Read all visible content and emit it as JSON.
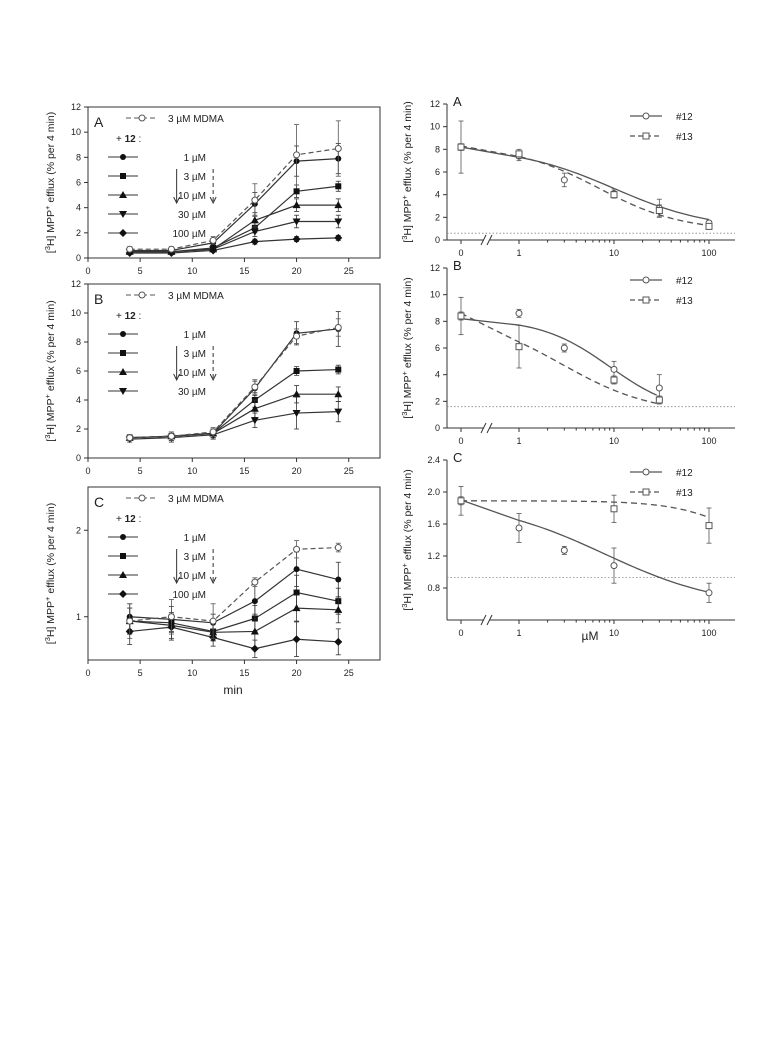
{
  "figure": {
    "shared_ylabel_left": "[3H] MPP+ efflux (% per 4 min)",
    "left_xlabel": "min",
    "right_xlabel": "µM",
    "ylabel_base": "H] MPP",
    "ylabel_tail": " efflux (% per 4 min)",
    "ylabel_sup1": "3",
    "ylabel_sup2": "+",
    "ylabel_open": "["
  },
  "chart_data": [
    {
      "id": "left-A",
      "type": "line",
      "panel_label": "A",
      "xlim": [
        0,
        28
      ],
      "ylim": [
        0,
        12
      ],
      "xticks": [
        0,
        5,
        10,
        15,
        20,
        25
      ],
      "yticks": [
        0,
        2,
        4,
        6,
        8,
        10,
        12
      ],
      "xlabel": "",
      "ylabel": "[3H] MPP+ efflux (% per 4 min)",
      "x": [
        4,
        8,
        12,
        16,
        20,
        24
      ],
      "arrows": [
        {
          "x": 8.5,
          "style": "solid"
        },
        {
          "x": 12,
          "style": "dashed"
        }
      ],
      "legend_header": "+ 12 :",
      "series": [
        {
          "name": "3 µM MDMA",
          "marker": "open-circle",
          "dash": true,
          "values": [
            0.7,
            0.7,
            1.4,
            4.6,
            8.2,
            8.7
          ],
          "err": [
            0.2,
            0.2,
            0.3,
            1.3,
            2.4,
            2.2
          ]
        },
        {
          "name": "1 µM",
          "marker": "filled-circle",
          "dash": false,
          "values": [
            0.6,
            0.6,
            1.2,
            4.3,
            7.7,
            7.9
          ],
          "err": [
            0.2,
            0.2,
            0.3,
            0.9,
            1.2,
            1.2
          ]
        },
        {
          "name": "3 µM",
          "marker": "filled-square",
          "dash": false,
          "values": [
            0.5,
            0.5,
            0.8,
            2.4,
            5.3,
            5.7
          ],
          "err": [
            0.2,
            0.2,
            0.2,
            0.4,
            0.5,
            0.4
          ]
        },
        {
          "name": "10 µM",
          "marker": "filled-triangle-up",
          "dash": false,
          "values": [
            0.5,
            0.5,
            0.7,
            3.0,
            4.2,
            4.2
          ],
          "err": [
            0.1,
            0.1,
            0.2,
            0.6,
            0.5,
            0.5
          ]
        },
        {
          "name": "30 µM",
          "marker": "filled-triangle-down",
          "dash": false,
          "values": [
            0.5,
            0.5,
            0.7,
            2.1,
            2.9,
            2.9
          ],
          "err": [
            0.1,
            0.1,
            0.2,
            0.4,
            0.5,
            0.5
          ]
        },
        {
          "name": "100 µM",
          "marker": "filled-diamond",
          "dash": false,
          "values": [
            0.4,
            0.4,
            0.6,
            1.3,
            1.5,
            1.6
          ],
          "err": [
            0.1,
            0.1,
            0.1,
            0.2,
            0.2,
            0.2
          ]
        }
      ]
    },
    {
      "id": "left-B",
      "type": "line",
      "panel_label": "B",
      "xlim": [
        0,
        28
      ],
      "ylim": [
        0,
        12
      ],
      "xticks": [
        0,
        5,
        10,
        15,
        20,
        25
      ],
      "yticks": [
        0,
        2,
        4,
        6,
        8,
        10,
        12
      ],
      "xlabel": "",
      "ylabel": "[3H] MPP+ efflux (% per 4 min)",
      "x": [
        4,
        8,
        12,
        16,
        20,
        24
      ],
      "arrows": [
        {
          "x": 8.5,
          "style": "solid"
        },
        {
          "x": 12,
          "style": "dashed"
        }
      ],
      "legend_header": "+ 12 :",
      "series": [
        {
          "name": "3 µM MDMA",
          "marker": "open-circle",
          "dash": true,
          "values": [
            1.4,
            1.5,
            1.8,
            4.9,
            8.4,
            9.0
          ],
          "err": [
            0.2,
            0.3,
            0.3,
            0.5,
            0.5,
            0.6
          ]
        },
        {
          "name": "1 µM",
          "marker": "filled-circle",
          "dash": false,
          "values": [
            1.4,
            1.5,
            1.7,
            4.8,
            8.6,
            8.9
          ],
          "err": [
            0.2,
            0.3,
            0.3,
            0.5,
            0.8,
            1.2
          ]
        },
        {
          "name": "3 µM",
          "marker": "filled-square",
          "dash": false,
          "values": [
            1.4,
            1.5,
            1.7,
            4.0,
            6.0,
            6.1
          ],
          "err": [
            0.2,
            0.3,
            0.3,
            0.5,
            0.3,
            0.3
          ]
        },
        {
          "name": "10 µM",
          "marker": "filled-triangle-up",
          "dash": false,
          "values": [
            1.4,
            1.5,
            1.7,
            3.4,
            4.4,
            4.4
          ],
          "err": [
            0.2,
            0.3,
            0.3,
            0.6,
            0.6,
            0.5
          ]
        },
        {
          "name": "30 µM",
          "marker": "filled-triangle-down",
          "dash": false,
          "values": [
            1.3,
            1.4,
            1.6,
            2.6,
            3.1,
            3.2
          ],
          "err": [
            0.2,
            0.3,
            0.3,
            0.5,
            1.1,
            0.7
          ]
        }
      ]
    },
    {
      "id": "left-C",
      "type": "line",
      "panel_label": "C",
      "xlim": [
        0,
        28
      ],
      "ylim": [
        0.5,
        2.5
      ],
      "xticks": [
        0,
        5,
        10,
        15,
        20,
        25
      ],
      "yticks": [
        1,
        2
      ],
      "xlabel": "min",
      "ylabel": "[3H] MPP+ efflux (% per 4 min)",
      "x": [
        4,
        8,
        12,
        16,
        20,
        24
      ],
      "arrows": [
        {
          "x": 8.5,
          "style": "solid"
        },
        {
          "x": 12,
          "style": "dashed"
        }
      ],
      "legend_header": "+ 12 :",
      "series": [
        {
          "name": "3 µM MDMA",
          "marker": "open-circle",
          "dash": true,
          "values": [
            0.95,
            1.0,
            0.95,
            1.4,
            1.78,
            1.8
          ],
          "err": [
            0.2,
            0.2,
            0.2,
            0.05,
            0.1,
            0.05
          ]
        },
        {
          "name": "1 µM",
          "marker": "filled-circle",
          "dash": false,
          "values": [
            1.0,
            0.97,
            0.93,
            1.18,
            1.55,
            1.43
          ],
          "err": [
            0.15,
            0.15,
            0.1,
            0.2,
            0.2,
            0.2
          ]
        },
        {
          "name": "3 µM",
          "marker": "filled-square",
          "dash": false,
          "values": [
            0.95,
            0.93,
            0.83,
            0.98,
            1.28,
            1.18
          ],
          "err": [
            0.15,
            0.1,
            0.1,
            0.15,
            0.2,
            0.15
          ]
        },
        {
          "name": "10 µM",
          "marker": "filled-triangle-up",
          "dash": false,
          "values": [
            0.95,
            0.9,
            0.82,
            0.83,
            1.1,
            1.08
          ],
          "err": [
            0.15,
            0.15,
            0.1,
            0.2,
            0.15,
            0.15
          ]
        },
        {
          "name": "100 µM",
          "marker": "filled-diamond",
          "dash": false,
          "values": [
            0.83,
            0.88,
            0.76,
            0.63,
            0.74,
            0.71
          ],
          "err": [
            0.15,
            0.15,
            0.1,
            0.1,
            0.2,
            0.15
          ]
        }
      ]
    },
    {
      "id": "right-A",
      "type": "scatter",
      "panel_label": "A",
      "xscale": "log-with-zero-break",
      "xticks": [
        "0",
        "1",
        "10",
        "100"
      ],
      "ylim": [
        0,
        12
      ],
      "yticks": [
        0,
        2,
        4,
        6,
        8,
        10,
        12
      ],
      "xlabel": "",
      "ylabel": "[3H] MPP+ efflux (% per 4 min)",
      "baseline": 0.6,
      "series": [
        {
          "name": "#12",
          "marker": "open-circle",
          "dash": false,
          "points": [
            {
              "x": 0,
              "y": 8.2,
              "err": 2.3
            },
            {
              "x": 1,
              "y": 7.4,
              "err": 0.4
            },
            {
              "x": 3,
              "y": 5.3,
              "err": 0.6
            },
            {
              "x": 10,
              "y": 4.1,
              "err": 0.4
            },
            {
              "x": 30,
              "y": 2.8,
              "err": 0.8
            },
            {
              "x": 100,
              "y": 1.5,
              "err": 0.2
            }
          ],
          "fit": {
            "top": 8.2,
            "bottom": 0.9,
            "ic50": 10,
            "hill": 0.85
          }
        },
        {
          "name": "#13",
          "marker": "open-square",
          "dash": true,
          "points": [
            {
              "x": 0,
              "y": 8.2,
              "err": 0.3
            },
            {
              "x": 1,
              "y": 7.6,
              "err": 0.4
            },
            {
              "x": 10,
              "y": 4.0,
              "err": 0.3
            },
            {
              "x": 30,
              "y": 2.6,
              "err": 0.5
            },
            {
              "x": 100,
              "y": 1.2,
              "err": 0.2
            }
          ],
          "fit": {
            "top": 8.3,
            "bottom": 0.8,
            "ic50": 7,
            "hill": 1.0
          }
        }
      ]
    },
    {
      "id": "right-B",
      "type": "scatter",
      "panel_label": "B",
      "xscale": "log-with-zero-break",
      "xticks": [
        "0",
        "1",
        "10",
        "100"
      ],
      "ylim": [
        0,
        12
      ],
      "yticks": [
        0,
        2,
        4,
        6,
        8,
        10,
        12
      ],
      "xlabel": "",
      "ylabel": "[3H] MPP+ efflux (% per 4 min)",
      "baseline": 1.6,
      "series": [
        {
          "name": "#12",
          "marker": "open-circle",
          "dash": false,
          "points": [
            {
              "x": 0,
              "y": 8.4,
              "err": 1.4
            },
            {
              "x": 1,
              "y": 8.6,
              "err": 0.3
            },
            {
              "x": 3,
              "y": 6.0,
              "err": 0.3
            },
            {
              "x": 10,
              "y": 4.4,
              "err": 0.6
            },
            {
              "x": 30,
              "y": 3.0,
              "err": 1.0
            }
          ],
          "fit": {
            "top": 8.2,
            "bottom": 1.0,
            "ic50": 9,
            "hill": 1.2
          }
        },
        {
          "name": "#13",
          "marker": "open-square",
          "dash": true,
          "points": [
            {
              "x": 0,
              "y": 8.4,
              "err": 0.3
            },
            {
              "x": 1,
              "y": 6.1,
              "err": 1.6
            },
            {
              "x": 10,
              "y": 3.6,
              "err": 0.3
            },
            {
              "x": 30,
              "y": 2.1,
              "err": 0.3
            }
          ],
          "fit": {
            "top": 8.6,
            "bottom": 1.0,
            "ic50": 2.8,
            "hill": 0.9
          }
        }
      ]
    },
    {
      "id": "right-C",
      "type": "scatter",
      "panel_label": "C",
      "xscale": "log-with-zero-break",
      "xticks": [
        "0",
        "1",
        "10",
        "100"
      ],
      "ylim": [
        0.4,
        2.4
      ],
      "yticks": [
        "0.8",
        "1.2",
        "1.6",
        "2.0",
        "2.4"
      ],
      "xlabel": "µM",
      "ylabel": "[3H] MPP+ efflux (% per 4 min)",
      "baseline": 0.93,
      "series": [
        {
          "name": "#12",
          "marker": "open-circle",
          "dash": false,
          "points": [
            {
              "x": 0,
              "y": 1.89,
              "err": 0.18
            },
            {
              "x": 1,
              "y": 1.55,
              "err": 0.18
            },
            {
              "x": 3,
              "y": 1.27,
              "err": 0.05
            },
            {
              "x": 10,
              "y": 1.08,
              "err": 0.22
            },
            {
              "x": 100,
              "y": 0.74,
              "err": 0.12
            }
          ],
          "fit": {
            "top": 1.9,
            "bottom": 0.55,
            "ic50": 8,
            "hill": 0.7
          }
        },
        {
          "name": "#13",
          "marker": "open-square",
          "dash": true,
          "points": [
            {
              "x": 0,
              "y": 1.89,
              "err": 0.05
            },
            {
              "x": 10,
              "y": 1.79,
              "err": 0.17
            },
            {
              "x": 100,
              "y": 1.58,
              "err": 0.22
            }
          ],
          "fit": {
            "top": 1.89,
            "bottom": 0.9,
            "ic50": 300,
            "hill": 1.2
          }
        }
      ]
    }
  ]
}
